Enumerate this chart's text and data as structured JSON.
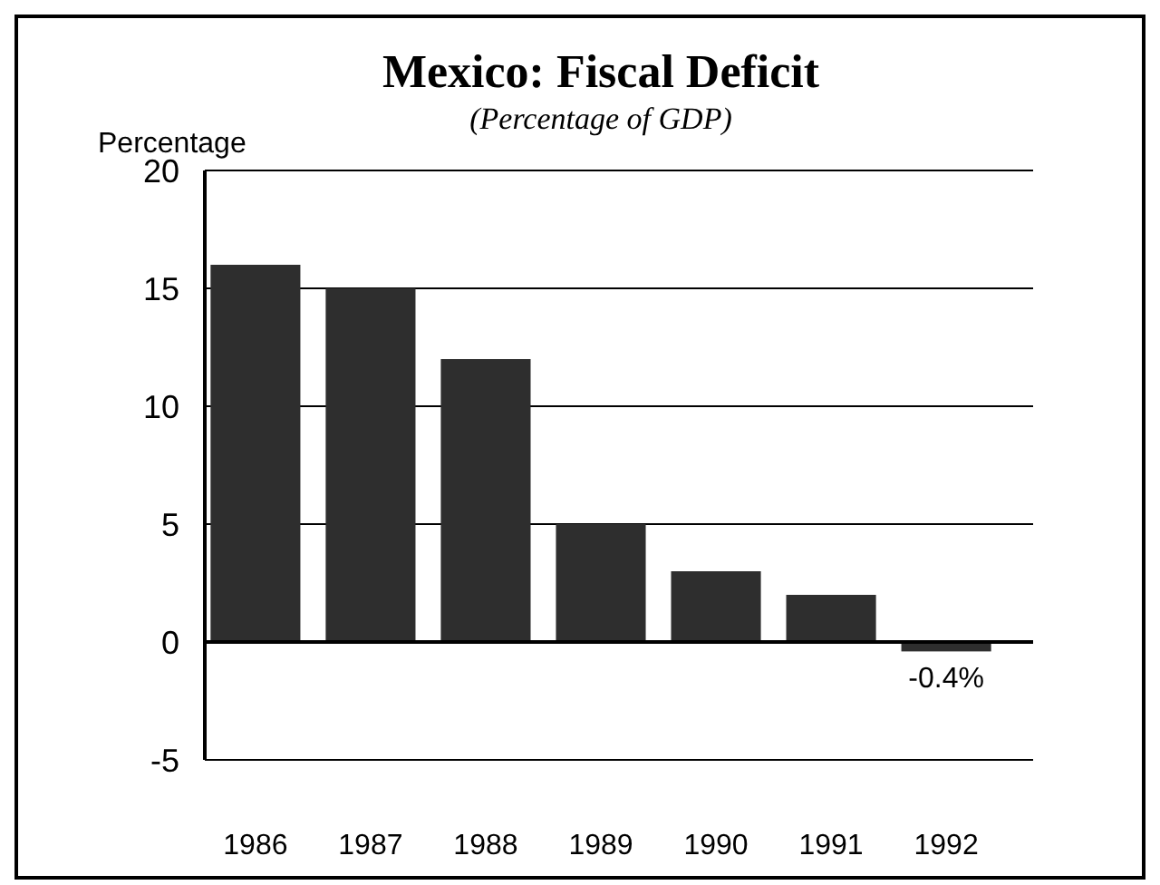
{
  "chart_data": {
    "type": "bar",
    "title": "Mexico: Fiscal Deficit",
    "subtitle": "(Percentage of GDP)",
    "ylabel": "Percentage",
    "categories": [
      "1986",
      "1987",
      "1988",
      "1989",
      "1990",
      "1991",
      "1992"
    ],
    "values": [
      16,
      15,
      12,
      5,
      3,
      2,
      -0.4
    ],
    "value_labels": [
      null,
      null,
      null,
      null,
      null,
      null,
      "-0.4%"
    ],
    "color": "#2e2e2e",
    "ylim": [
      -5,
      20
    ],
    "yticks": [
      -5,
      0,
      5,
      10,
      15,
      20
    ],
    "grid": "y"
  }
}
